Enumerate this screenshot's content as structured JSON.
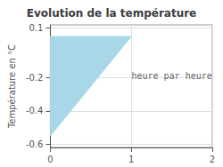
{
  "chart_data": {
    "type": "polygon",
    "title": "Evolution de la température",
    "ylabel": "Température en °C",
    "x": [
      0,
      0,
      1
    ],
    "values": [
      0.05,
      -0.55,
      0.05
    ],
    "color": "#a8d8e8",
    "annotations": [
      {
        "text": "heure par heure",
        "x": 1.5,
        "y": -0.19
      }
    ],
    "xlim": [
      0,
      2.0
    ],
    "ylim": [
      -0.62,
      0.12
    ],
    "xticks": [
      0,
      1,
      2
    ],
    "yticks": [
      0.1,
      -0.2,
      -0.4,
      -0.6
    ],
    "grid": true
  }
}
